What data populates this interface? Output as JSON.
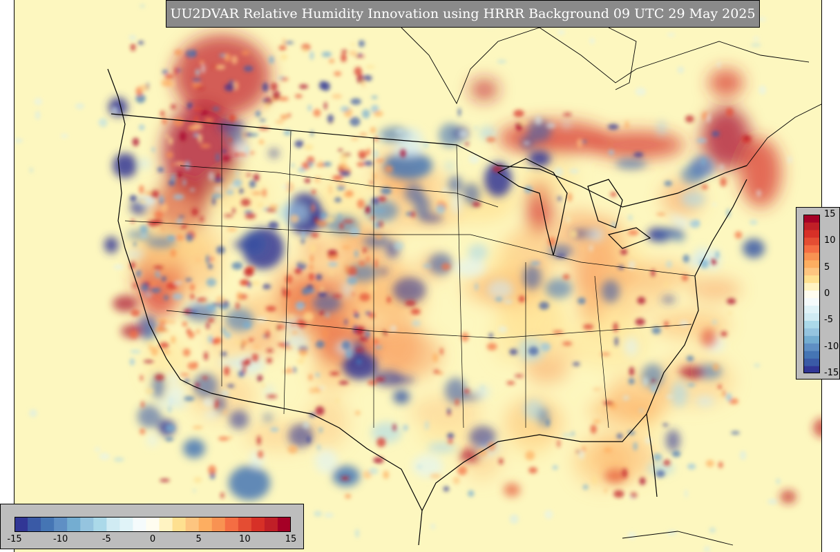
{
  "title": "UU2DVAR Relative Humidity Innovation using HRRR Background 09 UTC 29 May 2025",
  "colorbar": {
    "min": -15,
    "max": 15,
    "horizontal_tick_labels": [
      "-15",
      "-10",
      "-5",
      "0",
      "5",
      "10",
      "15"
    ],
    "vertical_tick_labels": [
      "15",
      "10",
      "5",
      "0",
      "-5",
      "-10",
      "-15"
    ],
    "colors": [
      "#313695",
      "#3a5aa6",
      "#4575b4",
      "#5f8fc4",
      "#74add1",
      "#95c4df",
      "#abd9e9",
      "#d0ebf3",
      "#e0f3f8",
      "#f5fbfc",
      "#fffdf0",
      "#fff3c2",
      "#fee090",
      "#fdc580",
      "#fdae61",
      "#f89252",
      "#f46d43",
      "#e44d33",
      "#d73027",
      "#c01f27",
      "#a50026"
    ]
  },
  "map": {
    "background_color": "#fdf7bf",
    "outline_color": "#000000"
  }
}
